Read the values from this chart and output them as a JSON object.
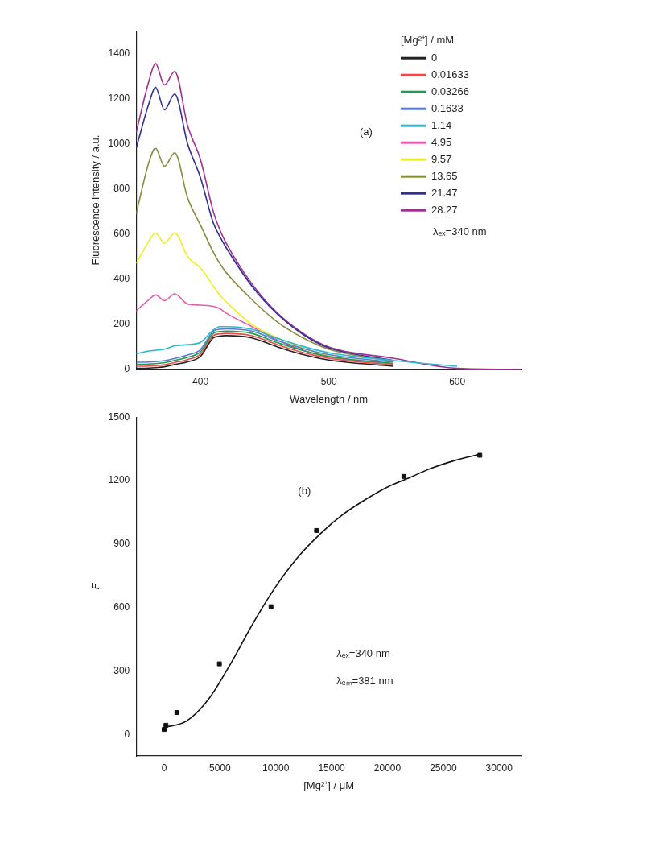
{
  "chart_data": [
    {
      "type": "line",
      "xlabel": "Wavelength / nm",
      "ylabel": "Fluorescence intensity / a.u.",
      "legend_title": "[Mg²⁺] / mM",
      "legend": "top right",
      "marker": "none",
      "grid": false,
      "annotations": [
        "(a)",
        "λₑₓ=340 nm"
      ],
      "x": [
        350,
        360,
        365,
        372,
        380,
        390,
        400,
        410,
        415,
        420,
        440,
        460,
        480,
        500,
        550
      ],
      "xlim": [
        350,
        650
      ],
      "xticks": [
        400,
        500,
        600
      ],
      "ylim": [
        0,
        1500
      ],
      "yticks": [
        0,
        200,
        400,
        600,
        800,
        1000,
        1200,
        1400
      ],
      "series": [
        {
          "name": "0",
          "color": "#222222",
          "values": [
            5,
            6,
            8,
            12,
            22,
            34,
            58,
            140,
            148,
            150,
            140,
            100,
            66,
            42,
            14
          ]
        },
        {
          "name": "0.01633",
          "color": "#f04848",
          "values": [
            14,
            15,
            17,
            21,
            31,
            44,
            68,
            150,
            158,
            160,
            150,
            110,
            75,
            50,
            20
          ]
        },
        {
          "name": "0.03266",
          "color": "#1a9e50",
          "values": [
            23,
            24,
            26,
            30,
            40,
            54,
            78,
            160,
            168,
            170,
            160,
            119,
            84,
            58,
            26
          ]
        },
        {
          "name": "0.1633",
          "color": "#5a78d0",
          "values": [
            32,
            33,
            35,
            39,
            49,
            64,
            88,
            170,
            178,
            180,
            170,
            128,
            93,
            66,
            32
          ]
        },
        {
          "name": "1.14",
          "color": "#28b8d0",
          "x": [
            350,
            360,
            365,
            372,
            380,
            390,
            400,
            410,
            415,
            420,
            440,
            460,
            480,
            500,
            550,
            600
          ],
          "values": [
            70,
            82,
            85,
            90,
            105,
            110,
            120,
            175,
            190,
            190,
            178,
            138,
            102,
            74,
            40,
            14
          ]
        },
        {
          "name": "4.95",
          "color": "#e060b0",
          "values": [
            260,
            310,
            330,
            305,
            335,
            290,
            285,
            280,
            270,
            250,
            190,
            130,
            85,
            55,
            25
          ]
        },
        {
          "name": "9.57",
          "color": "#eeee20",
          "values": [
            470,
            570,
            605,
            560,
            605,
            500,
            450,
            370,
            330,
            300,
            200,
            140,
            95,
            60,
            25
          ]
        },
        {
          "name": "13.65",
          "color": "#8a8a40",
          "values": [
            690,
            920,
            980,
            900,
            960,
            760,
            640,
            520,
            470,
            430,
            310,
            210,
            140,
            90,
            35
          ]
        },
        {
          "name": "21.47",
          "color": "#303090",
          "values": [
            980,
            1180,
            1250,
            1150,
            1220,
            1000,
            850,
            650,
            590,
            540,
            370,
            245,
            155,
            95,
            40
          ]
        },
        {
          "name": "28.27",
          "color": "#a03090",
          "x": [
            350,
            360,
            365,
            372,
            380,
            390,
            400,
            410,
            415,
            420,
            440,
            460,
            480,
            500,
            550,
            600,
            650
          ],
          "values": [
            1050,
            1280,
            1355,
            1260,
            1320,
            1080,
            930,
            700,
            620,
            560,
            380,
            250,
            160,
            100,
            50,
            5,
            0
          ]
        }
      ]
    },
    {
      "type": "scatter",
      "xlabel": "[Mg²⁺] / μM",
      "ylabel": "F",
      "grid": false,
      "annotations": [
        "(b)",
        "λₑₓ=340 nm",
        "λₑₘ=381 nm"
      ],
      "xlim": [
        -2500,
        32000
      ],
      "xticks": [
        0,
        5000,
        10000,
        15000,
        20000,
        25000,
        30000
      ],
      "ylim": [
        -100,
        1500
      ],
      "yticks": [
        0,
        300,
        600,
        900,
        1200,
        1500
      ],
      "series": [
        {
          "marker": "square",
          "color": "#111111",
          "x": [
            0,
            163.3,
            1140,
            4950,
            9570,
            13650,
            21470,
            28270
          ],
          "values": [
            25,
            45,
            105,
            335,
            605,
            965,
            1220,
            1320
          ]
        },
        {
          "type": "line",
          "marker": "none",
          "color": "#111111",
          "x": [
            0,
            2000,
            4000,
            6000,
            8000,
            10000,
            12000,
            14000,
            16000,
            18000,
            20000,
            22000,
            24000,
            26000,
            28270
          ],
          "values": [
            35,
            65,
            170,
            340,
            530,
            700,
            840,
            950,
            1040,
            1110,
            1170,
            1215,
            1260,
            1295,
            1325
          ]
        }
      ]
    }
  ]
}
